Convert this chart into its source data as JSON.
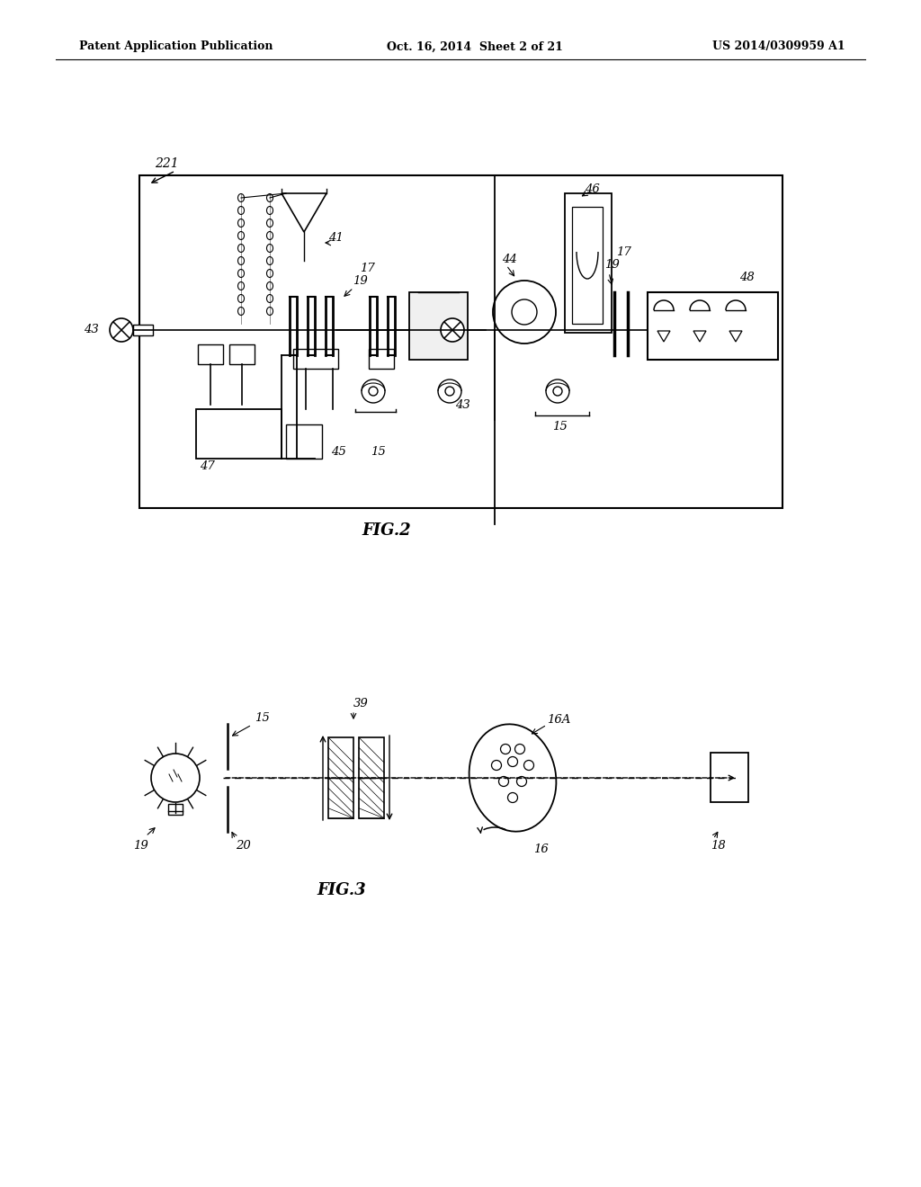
{
  "bg_color": "#ffffff",
  "header_left": "Patent Application Publication",
  "header_center": "Oct. 16, 2014  Sheet 2 of 21",
  "header_right": "US 2014/0309959 A1",
  "fig2_label": "FIG.2",
  "fig3_label": "FIG.3"
}
